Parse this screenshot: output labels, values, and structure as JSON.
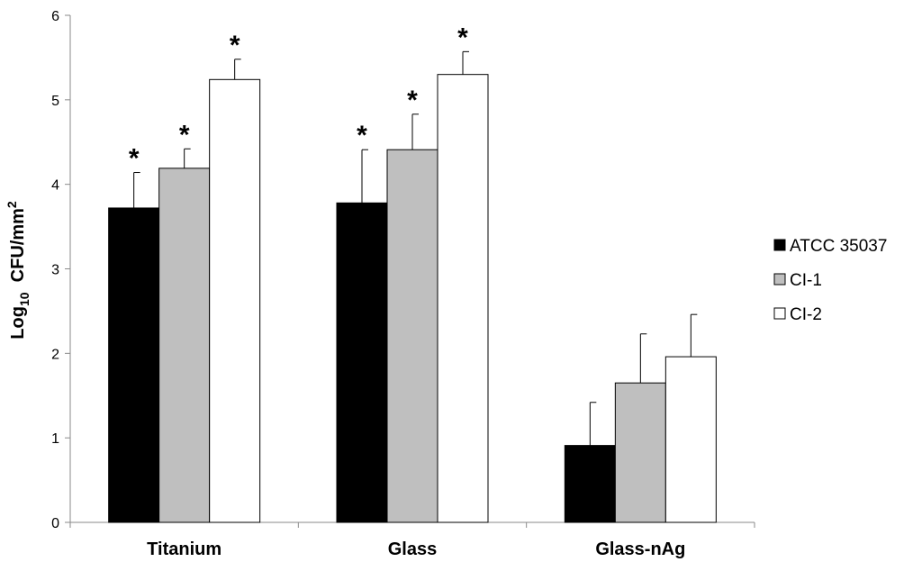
{
  "chart_data": {
    "type": "bar",
    "categories": [
      "Titanium",
      "Glass",
      "Glass-nAg"
    ],
    "series": [
      {
        "name": "ATCC 35037",
        "color": "#000000",
        "values": [
          3.72,
          3.78,
          0.91
        ],
        "errors": [
          0.42,
          0.63,
          0.51
        ],
        "significance": [
          "*",
          "*",
          ""
        ]
      },
      {
        "name": "CI-1",
        "color": "#bfbfbf",
        "values": [
          4.19,
          4.41,
          1.65
        ],
        "errors": [
          0.23,
          0.42,
          0.58
        ],
        "significance": [
          "*",
          "*",
          ""
        ]
      },
      {
        "name": "CI-2",
        "color": "#ffffff",
        "values": [
          5.24,
          5.3,
          1.96
        ],
        "errors": [
          0.24,
          0.27,
          0.5
        ],
        "significance": [
          "*",
          "*",
          ""
        ]
      }
    ],
    "ylabel": {
      "main": "Log",
      "sub": "10",
      "rest": "  CFU/mm",
      "sup": "2"
    },
    "ylim": [
      0,
      6
    ],
    "yticks": [
      "0",
      "1",
      "2",
      "3",
      "4",
      "5",
      "6"
    ],
    "grid": false,
    "legend_position": "right"
  }
}
